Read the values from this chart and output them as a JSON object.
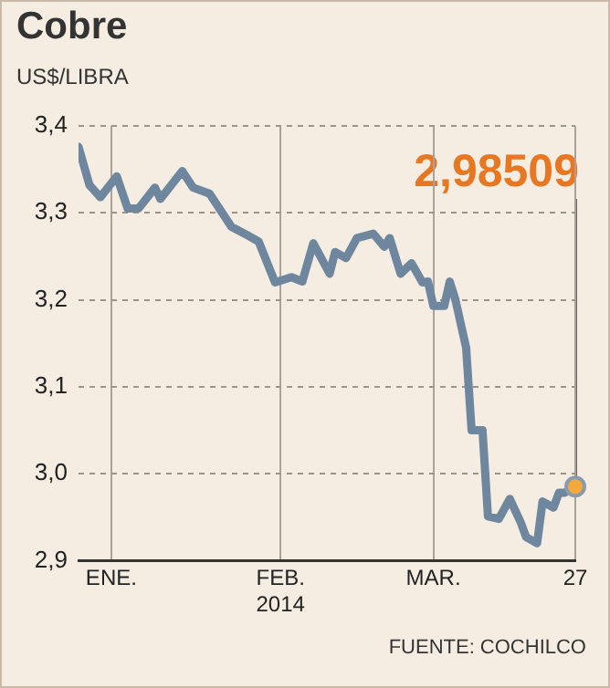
{
  "chart_data": {
    "type": "line",
    "title": "Cobre",
    "ylabel": "US$/LIBRA",
    "x": [
      "2013-12-26",
      "2013-12-28",
      "2013-12-30",
      "2014-01-02",
      "2014-01-04",
      "2014-01-06",
      "2014-01-09",
      "2014-01-10",
      "2014-01-14",
      "2014-01-16",
      "2014-01-19",
      "2014-01-23",
      "2014-01-26",
      "2014-01-28",
      "2014-01-31",
      "2014-02-03",
      "2014-02-05",
      "2014-02-07",
      "2014-02-10",
      "2014-02-11",
      "2014-02-13",
      "2014-02-15",
      "2014-02-18",
      "2014-02-20",
      "2014-02-21",
      "2014-02-23",
      "2014-02-25",
      "2014-02-27",
      "2014-02-28",
      "2014-03-01",
      "2014-03-03",
      "2014-03-04",
      "2014-03-05",
      "2014-03-07",
      "2014-03-08",
      "2014-03-10",
      "2014-03-11",
      "2014-03-13",
      "2014-03-15",
      "2014-03-17",
      "2014-03-18",
      "2014-03-20",
      "2014-03-21",
      "2014-03-23",
      "2014-03-24",
      "2014-03-25",
      "2014-03-27"
    ],
    "series": [
      {
        "color": "#6e879e",
        "values": [
          3.376,
          3.332,
          3.318,
          3.342,
          3.305,
          3.305,
          3.329,
          3.316,
          3.348,
          3.329,
          3.322,
          3.284,
          3.274,
          3.267,
          3.22,
          3.226,
          3.221,
          3.265,
          3.23,
          3.255,
          3.248,
          3.271,
          3.276,
          3.261,
          3.271,
          3.23,
          3.242,
          3.22,
          3.221,
          3.193,
          3.193,
          3.221,
          3.201,
          3.145,
          3.05,
          3.05,
          2.951,
          2.948,
          2.971,
          2.944,
          2.927,
          2.92,
          2.968,
          2.961,
          2.978,
          2.978,
          2.98509
        ]
      }
    ],
    "xlim": [
      "2013-12-26",
      "2014-03-27"
    ],
    "xticks": [
      {
        "value": "2014-01-01",
        "label": "ENE."
      },
      {
        "value": "2014-02-01",
        "label": "FEB.\n2014"
      },
      {
        "value": "2014-03-01",
        "label": "MAR."
      },
      {
        "value": "2014-03-27",
        "label": "27"
      }
    ],
    "ylim": [
      2.9,
      3.4
    ],
    "yticks": [
      {
        "value": 2.9,
        "label": "2,9"
      },
      {
        "value": 3.0,
        "label": "3,0"
      },
      {
        "value": 3.1,
        "label": "3,1"
      },
      {
        "value": 3.2,
        "label": "3,2"
      },
      {
        "value": 3.3,
        "label": "3,3"
      },
      {
        "value": 3.4,
        "label": "3,4"
      }
    ],
    "grid": true,
    "legend": false,
    "annotations": [
      "2,98509",
      "FUENTE: COCHILCO"
    ]
  }
}
